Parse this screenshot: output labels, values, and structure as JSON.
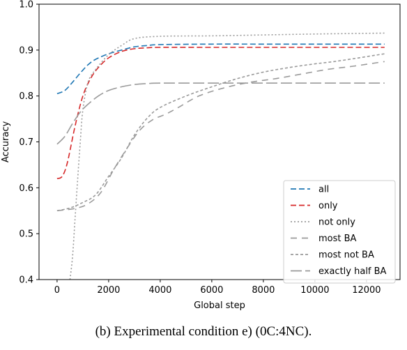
{
  "chart_data": {
    "type": "line",
    "xlabel": "Global step",
    "ylabel": "Accuracy",
    "xlim": [
      -700,
      13300
    ],
    "ylim": [
      0.4,
      1.0
    ],
    "xticks": [
      0,
      2000,
      4000,
      6000,
      8000,
      10000,
      12000
    ],
    "yticks": [
      0.4,
      0.5,
      0.6,
      0.7,
      0.8,
      0.9,
      1.0
    ],
    "legend_position": "lower-right",
    "series": [
      {
        "name": "all",
        "color": "#1f77b4",
        "dash": "8,4",
        "points": [
          [
            0,
            0.805
          ],
          [
            300,
            0.812
          ],
          [
            600,
            0.83
          ],
          [
            900,
            0.85
          ],
          [
            1200,
            0.868
          ],
          [
            1500,
            0.88
          ],
          [
            2000,
            0.892
          ],
          [
            2500,
            0.9
          ],
          [
            3000,
            0.907
          ],
          [
            3500,
            0.91
          ],
          [
            4000,
            0.912
          ],
          [
            6000,
            0.913
          ],
          [
            8000,
            0.913
          ],
          [
            10000,
            0.913
          ],
          [
            12700,
            0.913
          ]
        ]
      },
      {
        "name": "only",
        "color": "#d62728",
        "dash": "8,4",
        "points": [
          [
            0,
            0.62
          ],
          [
            200,
            0.625
          ],
          [
            400,
            0.655
          ],
          [
            700,
            0.735
          ],
          [
            1000,
            0.8
          ],
          [
            1300,
            0.838
          ],
          [
            1600,
            0.862
          ],
          [
            2000,
            0.883
          ],
          [
            2500,
            0.897
          ],
          [
            3000,
            0.903
          ],
          [
            3500,
            0.905
          ],
          [
            4000,
            0.906
          ],
          [
            6000,
            0.906
          ],
          [
            8000,
            0.906
          ],
          [
            12700,
            0.906
          ]
        ]
      },
      {
        "name": "not only",
        "color": "#9a9a9a",
        "dash": "2,3",
        "points": [
          [
            500,
            0.4
          ],
          [
            600,
            0.45
          ],
          [
            700,
            0.535
          ],
          [
            800,
            0.62
          ],
          [
            900,
            0.7
          ],
          [
            1000,
            0.77
          ],
          [
            1200,
            0.83
          ],
          [
            1500,
            0.858
          ],
          [
            2000,
            0.89
          ],
          [
            2500,
            0.91
          ],
          [
            3000,
            0.925
          ],
          [
            4000,
            0.93
          ],
          [
            6000,
            0.931
          ],
          [
            8000,
            0.933
          ],
          [
            10000,
            0.935
          ],
          [
            12700,
            0.937
          ]
        ]
      },
      {
        "name": "most BA",
        "color": "#9a9a9a",
        "dash": "9,7",
        "points": [
          [
            0,
            0.55
          ],
          [
            700,
            0.555
          ],
          [
            1200,
            0.565
          ],
          [
            1700,
            0.59
          ],
          [
            2200,
            0.64
          ],
          [
            2700,
            0.685
          ],
          [
            3200,
            0.725
          ],
          [
            3700,
            0.748
          ],
          [
            4200,
            0.76
          ],
          [
            4700,
            0.775
          ],
          [
            5500,
            0.8
          ],
          [
            6500,
            0.818
          ],
          [
            7500,
            0.83
          ],
          [
            8500,
            0.838
          ],
          [
            9500,
            0.848
          ],
          [
            10500,
            0.858
          ],
          [
            11500,
            0.865
          ],
          [
            12700,
            0.875
          ]
        ]
      },
      {
        "name": "most not BA",
        "color": "#9a9a9a",
        "dash": "4,3",
        "points": [
          [
            0,
            0.55
          ],
          [
            500,
            0.556
          ],
          [
            1000,
            0.568
          ],
          [
            1500,
            0.585
          ],
          [
            2000,
            0.625
          ],
          [
            2500,
            0.665
          ],
          [
            3000,
            0.715
          ],
          [
            3500,
            0.752
          ],
          [
            4000,
            0.775
          ],
          [
            5000,
            0.8
          ],
          [
            6000,
            0.82
          ],
          [
            7000,
            0.838
          ],
          [
            8000,
            0.852
          ],
          [
            9000,
            0.862
          ],
          [
            10000,
            0.87
          ],
          [
            11000,
            0.877
          ],
          [
            12700,
            0.892
          ]
        ]
      },
      {
        "name": "exactly half BA",
        "color": "#9a9a9a",
        "dash": "16,5",
        "points": [
          [
            0,
            0.695
          ],
          [
            300,
            0.712
          ],
          [
            600,
            0.74
          ],
          [
            900,
            0.765
          ],
          [
            1200,
            0.782
          ],
          [
            1600,
            0.8
          ],
          [
            2000,
            0.812
          ],
          [
            2500,
            0.82
          ],
          [
            3000,
            0.825
          ],
          [
            3500,
            0.827
          ],
          [
            4000,
            0.828
          ],
          [
            6000,
            0.828
          ],
          [
            8000,
            0.828
          ],
          [
            12700,
            0.828
          ]
        ]
      }
    ]
  },
  "caption": "(b)  Experimental condition e) (0C:4NC)."
}
